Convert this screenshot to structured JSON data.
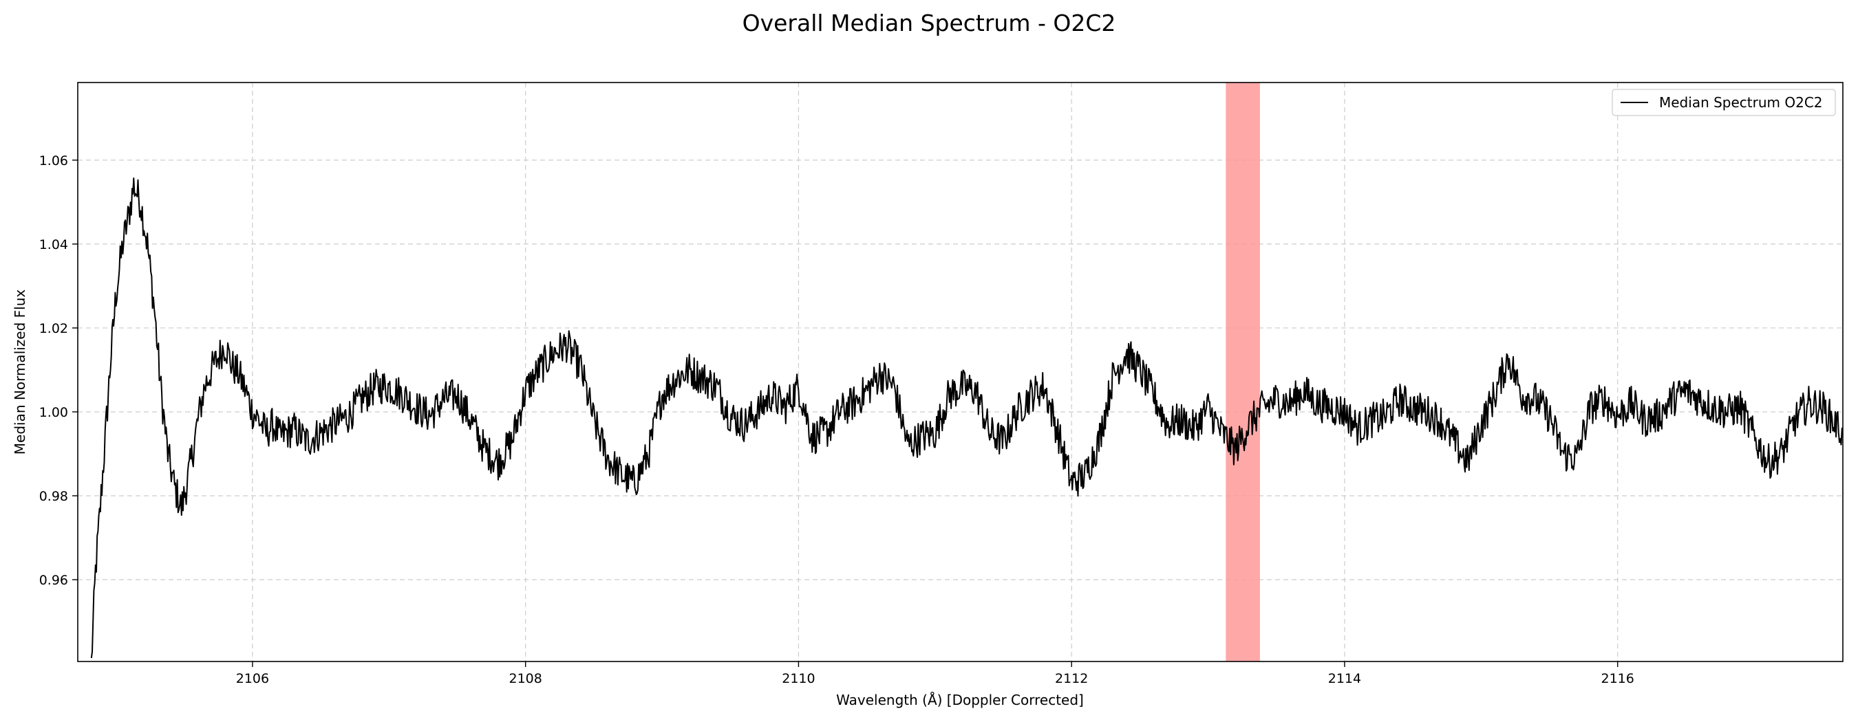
{
  "chart_data": {
    "type": "line",
    "title": "Overall Median Spectrum - O2C2",
    "xlabel": "Wavelength (Å) [Doppler Corrected]",
    "ylabel": "Median Normalized Flux",
    "xlim": [
      2104.72,
      2117.65
    ],
    "ylim": [
      0.9405,
      1.0785
    ],
    "xticks": [
      2106,
      2108,
      2110,
      2112,
      2114,
      2116
    ],
    "yticks": [
      0.96,
      0.98,
      1.0,
      1.02,
      1.04,
      1.06
    ],
    "xtick_labels": [
      "2106",
      "2108",
      "2110",
      "2112",
      "2114",
      "2116"
    ],
    "ytick_labels": [
      "0.96",
      "0.98",
      "1.00",
      "1.02",
      "1.04",
      "1.06"
    ],
    "grid": true,
    "legend_position": "top-right",
    "highlight_band": {
      "x0": 2113.13,
      "x1": 2113.38,
      "color": "#ff9999"
    },
    "series": [
      {
        "name": "Median Spectrum O2C2",
        "color": "#000000",
        "x": [
          2104.82,
          2104.85,
          2104.88,
          2104.92,
          2104.96,
          2105.0,
          2105.05,
          2105.1,
          2105.13,
          2105.18,
          2105.23,
          2105.28,
          2105.33,
          2105.38,
          2105.43,
          2105.48,
          2105.52,
          2105.56,
          2105.6,
          2105.65,
          2105.7,
          2105.75,
          2105.8,
          2105.85,
          2105.9,
          2105.95,
          2106.0,
          2106.05,
          2106.1,
          2106.15,
          2106.2,
          2106.3,
          2106.4,
          2106.5,
          2106.6,
          2106.7,
          2106.8,
          2106.9,
          2107.0,
          2107.1,
          2107.2,
          2107.3,
          2107.4,
          2107.5,
          2107.6,
          2107.7,
          2107.8,
          2107.9,
          2108.0,
          2108.1,
          2108.2,
          2108.3,
          2108.4,
          2108.5,
          2108.6,
          2108.7,
          2108.8,
          2108.9,
          2109.0,
          2109.1,
          2109.2,
          2109.3,
          2109.4,
          2109.5,
          2109.6,
          2109.7,
          2109.8,
          2109.9,
          2110.0,
          2110.1,
          2110.2,
          2110.3,
          2110.4,
          2110.5,
          2110.6,
          2110.7,
          2110.8,
          2110.9,
          2111.0,
          2111.1,
          2111.2,
          2111.3,
          2111.4,
          2111.5,
          2111.6,
          2111.7,
          2111.8,
          2111.9,
          2112.0,
          2112.1,
          2112.2,
          2112.3,
          2112.4,
          2112.5,
          2112.6,
          2112.7,
          2112.8,
          2112.9,
          2113.0,
          2113.1,
          2113.2,
          2113.3,
          2113.4,
          2113.5,
          2113.6,
          2113.7,
          2113.8,
          2113.9,
          2114.0,
          2114.1,
          2114.2,
          2114.3,
          2114.4,
          2114.5,
          2114.6,
          2114.7,
          2114.8,
          2114.9,
          2115.0,
          2115.1,
          2115.2,
          2115.3,
          2115.4,
          2115.5,
          2115.6,
          2115.7,
          2115.8,
          2115.9,
          2116.0,
          2116.1,
          2116.2,
          2116.3,
          2116.4,
          2116.5,
          2116.6,
          2116.7,
          2116.8,
          2116.9,
          2117.0,
          2117.1,
          2117.2,
          2117.3,
          2117.4,
          2117.5,
          2117.6,
          2117.65
        ],
        "y": [
          0.94,
          0.962,
          0.975,
          0.993,
          1.012,
          1.028,
          1.04,
          1.048,
          1.054,
          1.05,
          1.04,
          1.025,
          1.005,
          0.99,
          0.982,
          0.977,
          0.983,
          0.99,
          0.998,
          1.006,
          1.01,
          1.013,
          1.016,
          1.011,
          1.009,
          1.005,
          1.0,
          0.998,
          0.995,
          0.997,
          0.994,
          0.996,
          0.993,
          0.995,
          0.997,
          0.999,
          1.003,
          1.006,
          1.006,
          1.004,
          1.001,
          0.999,
          1.003,
          1.004,
          0.998,
          0.991,
          0.988,
          0.993,
          1.005,
          1.01,
          1.014,
          1.016,
          1.011,
          0.998,
          0.989,
          0.985,
          0.983,
          0.99,
          1.004,
          1.008,
          1.01,
          1.008,
          1.006,
          0.999,
          0.997,
          1.0,
          1.004,
          1.001,
          1.006,
          0.994,
          0.995,
          1.0,
          1.002,
          1.005,
          1.009,
          1.006,
          0.992,
          0.994,
          0.995,
          1.004,
          1.006,
          1.005,
          0.995,
          0.993,
          1.0,
          1.004,
          1.006,
          0.995,
          0.983,
          0.985,
          0.993,
          1.008,
          1.014,
          1.01,
          1.004,
          0.997,
          0.998,
          0.996,
          1.001,
          0.995,
          0.991,
          0.997,
          1.001,
          1.003,
          1.002,
          1.005,
          1.002,
          1.001,
          1.0,
          0.996,
          0.998,
          0.999,
          1.003,
          1.001,
          1.0,
          0.998,
          0.993,
          0.988,
          0.997,
          1.004,
          1.013,
          1.004,
          1.003,
          0.999,
          0.99,
          0.989,
          1.001,
          1.003,
          0.999,
          1.002,
          0.998,
          0.999,
          1.003,
          1.005,
          1.003,
          1.001,
          1.0,
          1.001,
          0.994,
          0.988,
          0.99,
          0.998,
          1.002,
          1.001,
          0.997,
          0.995
        ]
      }
    ]
  }
}
